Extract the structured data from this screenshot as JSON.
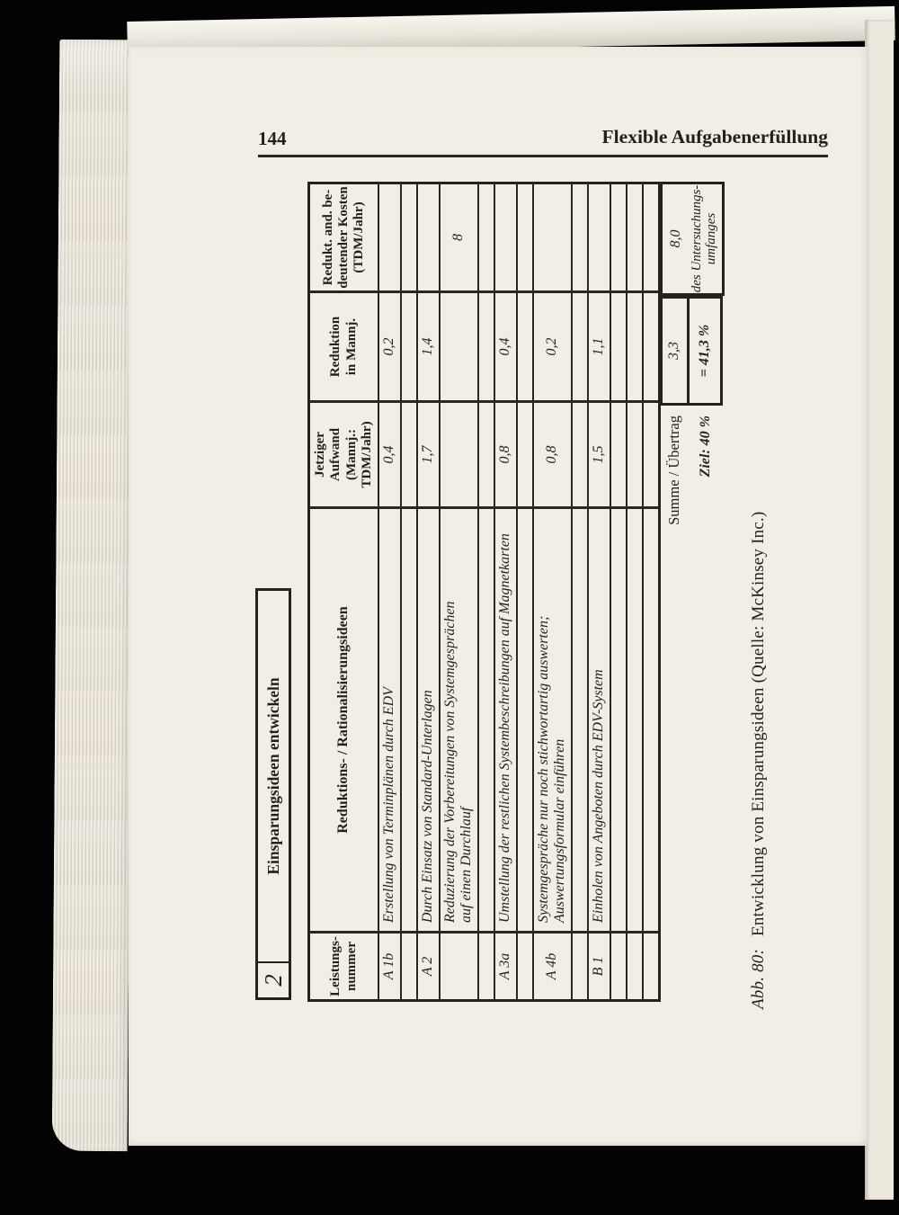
{
  "page": {
    "page_number": "144",
    "running_title": "Flexible Aufgabenerfüllung"
  },
  "figure": {
    "box_number": "2",
    "box_title": "Einsparungsideen entwickeln",
    "table": {
      "columns": [
        "Leistungs-\nnummer",
        "Reduktions- / Rationalisierungsideen",
        "Jetziger Aufwand\n(Mannj.: TDM/Jahr)",
        "Reduktion\nin Mannj.",
        "Redukt. and. be-\ndeutender Kosten\n(TDM/Jahr)"
      ],
      "rows": [
        {
          "nr": "A 1b",
          "idee": "Erstellung von Terminplänen durch EDV",
          "aufwand": "0,4",
          "reduktion": "0,2",
          "kosten": ""
        },
        {
          "nr": "",
          "idee": "",
          "aufwand": "",
          "reduktion": "",
          "kosten": ""
        },
        {
          "nr": "A 2",
          "idee": "Durch Einsatz von Standard-Unterlagen",
          "aufwand": "1,7",
          "reduktion": "1,4",
          "kosten": ""
        },
        {
          "nr": "",
          "idee": "Reduzierung der Vorbereitungen von Systemgesprächen\nauf einen Durchlauf",
          "aufwand": "",
          "reduktion": "",
          "kosten": "8"
        },
        {
          "nr": "",
          "idee": "",
          "aufwand": "",
          "reduktion": "",
          "kosten": ""
        },
        {
          "nr": "A 3a",
          "idee": "Umstellung der restlichen Systembeschreibungen auf Magnetkarten",
          "aufwand": "0,8",
          "reduktion": "0,4",
          "kosten": ""
        },
        {
          "nr": "",
          "idee": "",
          "aufwand": "",
          "reduktion": "",
          "kosten": ""
        },
        {
          "nr": "A 4b",
          "idee": "Systemgespräche nur noch stichwortartig auswerten;\nAuswertungsformular einführen",
          "aufwand": "0,8",
          "reduktion": "0,2",
          "kosten": ""
        },
        {
          "nr": "",
          "idee": "",
          "aufwand": "",
          "reduktion": "",
          "kosten": ""
        },
        {
          "nr": "B 1",
          "idee": "Einholen von Angeboten durch EDV-System",
          "aufwand": "1,5",
          "reduktion": "1,1",
          "kosten": ""
        },
        {
          "nr": "",
          "idee": "",
          "aufwand": "",
          "reduktion": "",
          "kosten": ""
        },
        {
          "nr": "",
          "idee": "",
          "aufwand": "",
          "reduktion": "",
          "kosten": ""
        },
        {
          "nr": "",
          "idee": "",
          "aufwand": "",
          "reduktion": "",
          "kosten": ""
        }
      ],
      "summary": {
        "summe_label": "Summe / Übertrag",
        "summe_reduktion": "3,3",
        "summe_kosten": "8,0",
        "ziel_label": "Ziel: 40 %",
        "ziel_reduktion": "= 41,3 %",
        "ziel_kosten_note": "des Untersuchungs-\numfanges"
      }
    },
    "caption_label": "Abb. 80:",
    "caption_text": "Entwicklung von Einsparungsideen (Quelle: McKinsey Inc.)"
  }
}
